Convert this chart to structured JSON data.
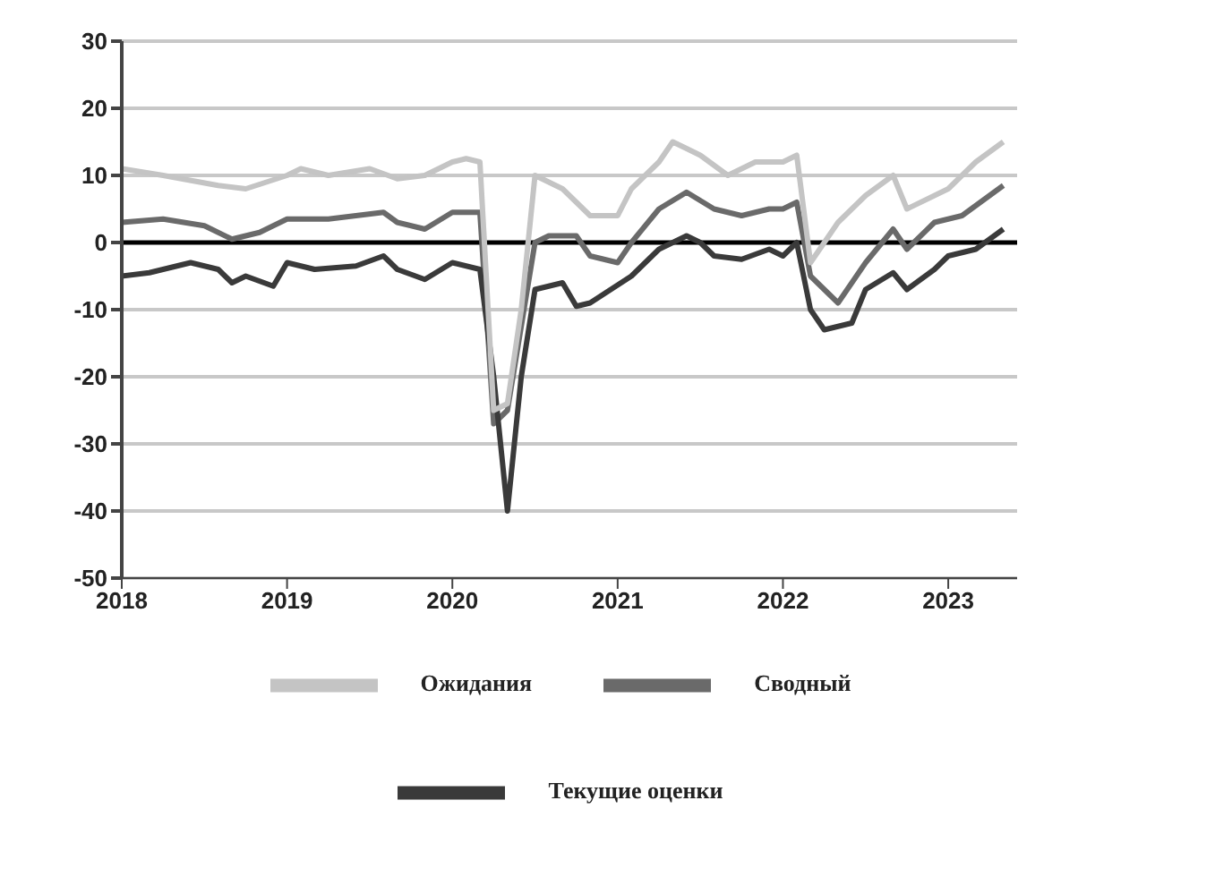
{
  "chart_data": {
    "type": "line",
    "xlim": [
      "2018-01",
      "2023-06"
    ],
    "xticks": [
      "2018",
      "2019",
      "2020",
      "2021",
      "2022",
      "2023"
    ],
    "ylim": [
      -50,
      30
    ],
    "yticks": [
      -50,
      -40,
      -30,
      -20,
      -10,
      0,
      10,
      20,
      30
    ],
    "grid": "y",
    "legend": "bottom",
    "marker": "none",
    "line_style": "solid",
    "ref_lines": [
      {
        "axis": "y",
        "value": 0,
        "color": "#000000"
      }
    ],
    "series": [
      {
        "name": "Сводный",
        "color": "#6a6a6a",
        "x": [
          "2018-01",
          "2018-04",
          "2018-07",
          "2018-09",
          "2018-11",
          "2019-01",
          "2019-04",
          "2019-08",
          "2019-09",
          "2019-11",
          "2020-01",
          "2020-03",
          "2020-04",
          "2020-05",
          "2020-07",
          "2020-08",
          "2020-10",
          "2020-11",
          "2021-01",
          "2021-02",
          "2021-04",
          "2021-06",
          "2021-08",
          "2021-10",
          "2021-12",
          "2022-01",
          "2022-02",
          "2022-03",
          "2022-05",
          "2022-07",
          "2022-09",
          "2022-10",
          "2022-12",
          "2023-02",
          "2023-05"
        ],
        "values": [
          3,
          3.5,
          2.5,
          0.5,
          1.5,
          3.5,
          3.5,
          4.5,
          3,
          2,
          4.5,
          4.5,
          -27,
          -25,
          0,
          1,
          1,
          -2,
          -3,
          0,
          5,
          7.5,
          5,
          4,
          5,
          5,
          6,
          -5,
          -9,
          -3,
          2,
          -1,
          3,
          4,
          8.5
        ]
      },
      {
        "name": "Текущие оценки",
        "color": "#3a3a3a",
        "x": [
          "2018-01",
          "2018-03",
          "2018-06",
          "2018-08",
          "2018-09",
          "2018-10",
          "2018-12",
          "2019-01",
          "2019-03",
          "2019-06",
          "2019-08",
          "2019-09",
          "2019-11",
          "2020-01",
          "2020-03",
          "2020-04",
          "2020-05",
          "2020-06",
          "2020-07",
          "2020-09",
          "2020-10",
          "2020-11",
          "2021-02",
          "2021-04",
          "2021-06",
          "2021-07",
          "2021-08",
          "2021-10",
          "2021-12",
          "2022-01",
          "2022-02",
          "2022-03",
          "2022-04",
          "2022-06",
          "2022-07",
          "2022-09",
          "2022-10",
          "2022-12",
          "2023-01",
          "2023-03",
          "2023-05"
        ],
        "values": [
          -5,
          -4.5,
          -3,
          -4,
          -6,
          -5,
          -6.5,
          -3,
          -4,
          -3.5,
          -2,
          -4,
          -5.5,
          -3,
          -4,
          -20,
          -40,
          -20,
          -7,
          -6,
          -9.5,
          -9,
          -5,
          -1,
          1,
          0,
          -2,
          -2.5,
          -1,
          -2,
          0,
          -10,
          -13,
          -12,
          -7,
          -4.5,
          -7,
          -4,
          -2,
          -1,
          2
        ]
      },
      {
        "name": "Ожидания",
        "color": "#c4c4c4",
        "x": [
          "2018-01",
          "2018-04",
          "2018-08",
          "2018-10",
          "2019-01",
          "2019-02",
          "2019-04",
          "2019-07",
          "2019-09",
          "2019-11",
          "2020-01",
          "2020-02",
          "2020-03",
          "2020-04",
          "2020-05",
          "2020-06",
          "2020-07",
          "2020-09",
          "2020-11",
          "2021-01",
          "2021-02",
          "2021-04",
          "2021-05",
          "2021-07",
          "2021-09",
          "2021-11",
          "2022-01",
          "2022-02",
          "2022-03",
          "2022-05",
          "2022-07",
          "2022-09",
          "2022-10",
          "2023-01",
          "2023-03",
          "2023-05"
        ],
        "values": [
          11,
          10,
          8.5,
          8,
          10,
          11,
          10,
          11,
          9.5,
          10,
          12,
          12.5,
          12,
          -25,
          -24,
          -10,
          10,
          8,
          4,
          4,
          8,
          12,
          15,
          13,
          10,
          12,
          12,
          13,
          -3,
          3,
          7,
          10,
          5,
          8,
          12,
          15
        ]
      }
    ]
  }
}
